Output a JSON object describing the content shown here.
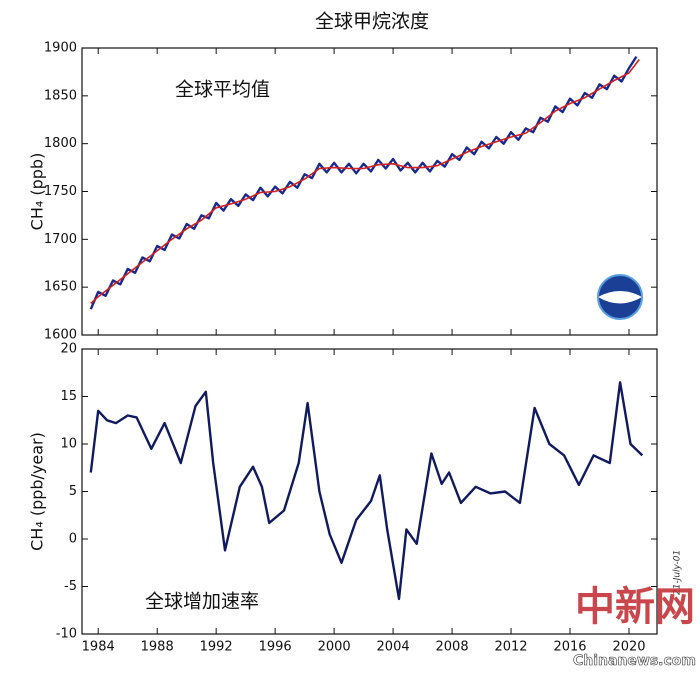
{
  "title": "全球甲烷浓度",
  "chart_data": [
    {
      "type": "line",
      "annotation": "全球平均值",
      "ylabel": "CH₄ (ppb)",
      "xlim": [
        1982.9,
        2021.9
      ],
      "ylim": [
        1600,
        1900
      ],
      "yticks": [
        1600,
        1650,
        1700,
        1750,
        1800,
        1850,
        1900
      ],
      "series": [
        {
          "color": "#1a2a8c",
          "x": [
            1983.5,
            1984,
            1984.5,
            1985,
            1985.5,
            1986,
            1986.5,
            1987,
            1987.5,
            1988,
            1988.5,
            1989,
            1989.5,
            1990,
            1990.5,
            1991,
            1991.5,
            1992,
            1992.5,
            1993,
            1993.5,
            1994,
            1994.5,
            1995,
            1995.5,
            1996,
            1996.5,
            1997,
            1997.5,
            1998,
            1998.5,
            1999,
            1999.5,
            2000,
            2000.5,
            2001,
            2001.5,
            2002,
            2002.5,
            2003,
            2003.5,
            2004,
            2004.5,
            2005,
            2005.5,
            2006,
            2006.5,
            2007,
            2007.5,
            2008,
            2008.5,
            2009,
            2009.5,
            2010,
            2010.5,
            2011,
            2011.5,
            2012,
            2012.5,
            2013,
            2013.5,
            2014,
            2014.5,
            2015,
            2015.5,
            2016,
            2016.5,
            2017,
            2017.5,
            2018,
            2018.5,
            2019,
            2019.5,
            2020,
            2020.5
          ],
          "values": [
            1627,
            1645,
            1641,
            1657,
            1653,
            1669,
            1665,
            1681,
            1677,
            1693,
            1689,
            1705,
            1701,
            1716,
            1711,
            1725,
            1722,
            1738,
            1730,
            1742,
            1735,
            1747,
            1741,
            1754,
            1745,
            1755,
            1748,
            1760,
            1754,
            1768,
            1764,
            1779,
            1770,
            1780,
            1770,
            1779,
            1769,
            1779,
            1771,
            1783,
            1774,
            1784,
            1772,
            1780,
            1770,
            1780,
            1771,
            1782,
            1776,
            1789,
            1783,
            1796,
            1789,
            1802,
            1795,
            1807,
            1800,
            1812,
            1804,
            1816,
            1812,
            1827,
            1823,
            1839,
            1833,
            1847,
            1840,
            1853,
            1848,
            1862,
            1857,
            1871,
            1865,
            1879,
            1891
          ]
        },
        {
          "color": "#d42020",
          "x": [
            1983.5,
            1984,
            1985,
            1986,
            1987,
            1988,
            1989,
            1990,
            1991,
            1992,
            1993,
            1994,
            1995,
            1996,
            1997,
            1998,
            1999,
            2000,
            2001,
            2002,
            2003,
            2004,
            2005,
            2006,
            2007,
            2008,
            2009,
            2010,
            2011,
            2012,
            2013,
            2014,
            2015,
            2016,
            2017,
            2018,
            2019,
            2020,
            2020.7
          ],
          "values": [
            1633,
            1640,
            1652,
            1664,
            1676,
            1688,
            1700,
            1711,
            1720,
            1733,
            1737,
            1742,
            1749,
            1750,
            1755,
            1763,
            1774,
            1775,
            1774,
            1774,
            1778,
            1779,
            1775,
            1775,
            1777,
            1784,
            1791,
            1797,
            1802,
            1807,
            1811,
            1822,
            1834,
            1842,
            1848,
            1857,
            1866,
            1874,
            1888
          ]
        }
      ]
    },
    {
      "type": "line",
      "annotation": "全球增加速率",
      "ylabel": "CH₄ (ppb/year)",
      "xlim": [
        1982.9,
        2021.9
      ],
      "ylim": [
        -10,
        20
      ],
      "yticks": [
        -10,
        -5,
        0,
        5,
        10,
        15,
        20
      ],
      "xticks": [
        1984,
        1988,
        1992,
        1996,
        2000,
        2004,
        2008,
        2012,
        2016,
        2020
      ],
      "series": [
        {
          "color": "#111a5e",
          "x": [
            1983.5,
            1984,
            1984.6,
            1985.2,
            1986,
            1986.6,
            1987.6,
            1988.5,
            1989.6,
            1990.6,
            1991.3,
            1991.8,
            1992.6,
            1993.6,
            1994.5,
            1995.1,
            1995.6,
            1996.6,
            1997.6,
            1998.2,
            1999,
            1999.7,
            2000.5,
            2001.5,
            2002.5,
            2003.1,
            2003.6,
            2004.4,
            2004.9,
            2005.6,
            2006.6,
            2007.3,
            2007.8,
            2008.6,
            2009.6,
            2010.6,
            2011.6,
            2012.6,
            2013.6,
            2014.6,
            2015.6,
            2016.6,
            2017.6,
            2018.7,
            2019.4,
            2020.1,
            2020.9
          ],
          "values": [
            7,
            13.5,
            12.5,
            12.2,
            13,
            12.8,
            9.5,
            12.2,
            8,
            14,
            15.5,
            8,
            -1.2,
            5.5,
            7.6,
            5.5,
            1.7,
            3,
            8,
            14.3,
            5,
            0.5,
            -2.5,
            2,
            4,
            6.7,
            1,
            -6.3,
            1,
            -0.5,
            9,
            5.8,
            7,
            3.8,
            5.5,
            4.8,
            5,
            3.8,
            13.8,
            10,
            8.8,
            5.7,
            8.8,
            8,
            16.5,
            10,
            8.8
          ]
        }
      ]
    }
  ],
  "date_stamp": "21-July-01",
  "watermark": [
    "中新网",
    "Chinanews.com"
  ]
}
